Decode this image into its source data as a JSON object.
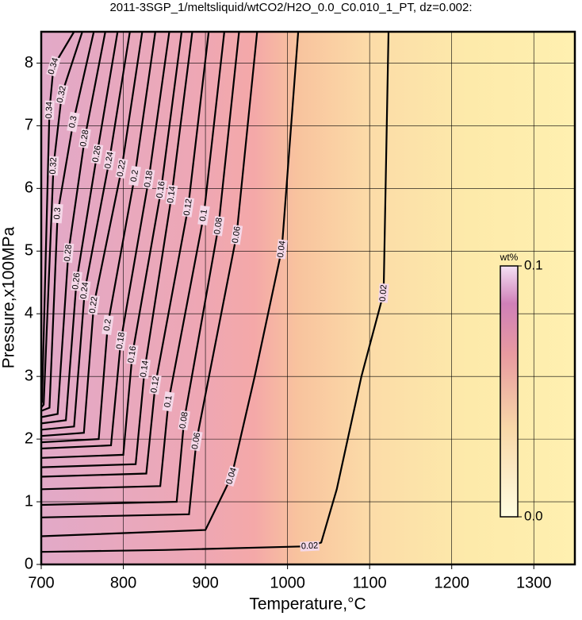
{
  "chart_data": {
    "type": "contour",
    "title": "2011-3SGP_1/meltsliquid/wtCO2/H2O_0.0_C0.010_1_PT, dz=0.002:",
    "xlabel": "Temperature,°C",
    "ylabel": "Pressure,x100MPa",
    "xlim": [
      700,
      1350
    ],
    "ylim": [
      0,
      8.5
    ],
    "xticks": [
      700,
      800,
      900,
      1000,
      1100,
      1200,
      1300
    ],
    "yticks": [
      0,
      1,
      2,
      3,
      4,
      5,
      6,
      7,
      8
    ],
    "grid": true,
    "colorbar": {
      "label": "wt%",
      "lim": [
        0,
        0.1
      ],
      "ticks": [
        {
          "value": 0,
          "label": "0.0"
        },
        0.1
      ]
    },
    "contours": [
      {
        "level": 0.02,
        "x": [
          700,
          850,
          1027,
          1041,
          1060,
          1090,
          1117,
          1123
        ],
        "y": [
          0.2,
          0.23,
          0.29,
          0.35,
          1.2,
          3,
          4.33,
          8.5
        ]
      },
      {
        "level": 0.04,
        "x": [
          700,
          900,
          932,
          960,
          993,
          1013
        ],
        "y": [
          0.45,
          0.55,
          1.41,
          3,
          5.03,
          8.5
        ]
      },
      {
        "level": 0.06,
        "x": [
          700,
          880,
          889,
          938,
          963
        ],
        "y": [
          0.75,
          0.8,
          1.97,
          5.26,
          8.5
        ]
      },
      {
        "level": 0.08,
        "x": [
          700,
          865,
          874,
          916,
          941
        ],
        "y": [
          0.95,
          1.0,
          2.3,
          5.4,
          8.5
        ]
      },
      {
        "level": 0.1,
        "x": [
          700,
          845,
          855,
          898,
          923
        ],
        "y": [
          1.2,
          1.25,
          2.6,
          5.57,
          8.5
        ]
      },
      {
        "level": 0.12,
        "x": [
          700,
          828,
          839,
          879,
          904
        ],
        "y": [
          1.4,
          1.45,
          2.87,
          5.7,
          8.5
        ]
      },
      {
        "level": 0.14,
        "x": [
          700,
          815,
          826,
          859,
          884
        ],
        "y": [
          1.55,
          1.6,
          3.12,
          5.9,
          8.5
        ]
      },
      {
        "level": 0.16,
        "x": [
          700,
          800,
          811,
          846,
          871
        ],
        "y": [
          1.7,
          1.75,
          3.35,
          5.98,
          8.5
        ]
      },
      {
        "level": 0.18,
        "x": [
          700,
          785,
          797,
          831,
          856
        ],
        "y": [
          1.85,
          1.9,
          3.57,
          6.15,
          8.5
        ]
      },
      {
        "level": 0.2,
        "x": [
          700,
          770,
          781,
          814,
          839
        ],
        "y": [
          1.95,
          2.0,
          3.82,
          6.2,
          8.5
        ]
      },
      {
        "level": 0.22,
        "x": [
          700,
          752,
          764,
          798,
          823
        ],
        "y": [
          2.05,
          2.1,
          4.14,
          6.32,
          8.5
        ]
      },
      {
        "level": 0.24,
        "x": [
          700,
          740,
          753,
          783,
          808
        ],
        "y": [
          2.15,
          2.2,
          4.37,
          6.45,
          8.5
        ]
      },
      {
        "level": 0.26,
        "x": [
          700,
          730,
          743,
          768,
          793
        ],
        "y": [
          2.25,
          2.3,
          4.52,
          6.55,
          8.5
        ]
      },
      {
        "level": 0.28,
        "x": [
          700,
          720,
          733,
          753,
          778
        ],
        "y": [
          2.35,
          2.4,
          4.97,
          6.8,
          8.5
        ]
      },
      {
        "level": 0.3,
        "x": [
          700,
          710,
          720,
          739,
          764
        ],
        "y": [
          2.45,
          2.5,
          5.6,
          7.06,
          8.5
        ]
      },
      {
        "level": 0.32,
        "x": [
          700,
          703,
          715,
          725,
          750
        ],
        "y": [
          2.5,
          2.55,
          6.36,
          7.5,
          8.5
        ]
      },
      {
        "level": 0.34,
        "x": [
          700,
          701,
          710,
          715,
          740
        ],
        "y": [
          2.55,
          2.6,
          7.25,
          7.95,
          8.5
        ]
      }
    ]
  }
}
